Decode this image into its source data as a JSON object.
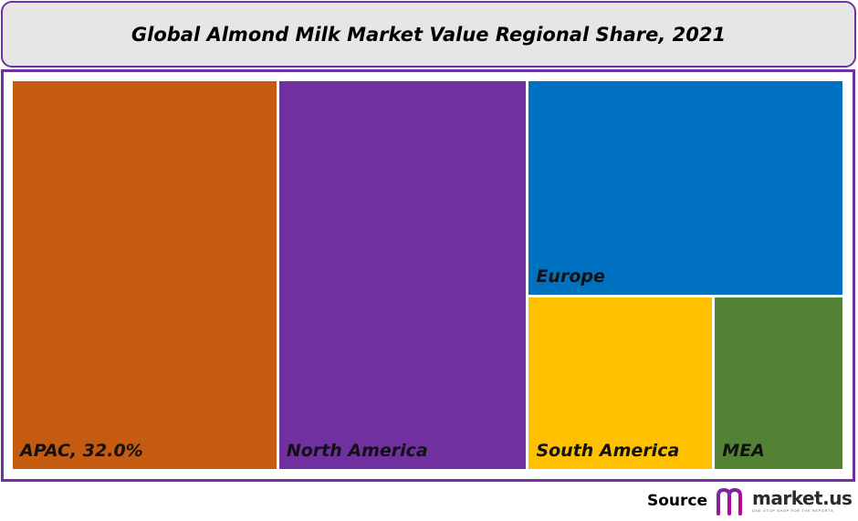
{
  "chart_data": {
    "type": "treemap",
    "title": "Global Almond Milk Market Value Regional Share, 2021",
    "units": "%",
    "items": [
      {
        "name": "APAC",
        "label": "APAC, 32.0%",
        "value": 32.0,
        "color": "#c55a11"
      },
      {
        "name": "North America",
        "label": "North America",
        "value": 30.0,
        "color": "#7030a0"
      },
      {
        "name": "Europe",
        "label": "Europe",
        "value": 21.0,
        "color": "#0070c0"
      },
      {
        "name": "South America",
        "label": "South America",
        "value": 10.0,
        "color": "#ffc000"
      },
      {
        "name": "MEA",
        "label": "MEA",
        "value": 7.0,
        "color": "#548235"
      }
    ]
  },
  "footer": {
    "source_label": "Source",
    "brand": "market.us",
    "tagline": "ONE STOP SHOP FOR THE REPORTS",
    "brand_colors": [
      "#7030a0",
      "#c00090"
    ]
  }
}
